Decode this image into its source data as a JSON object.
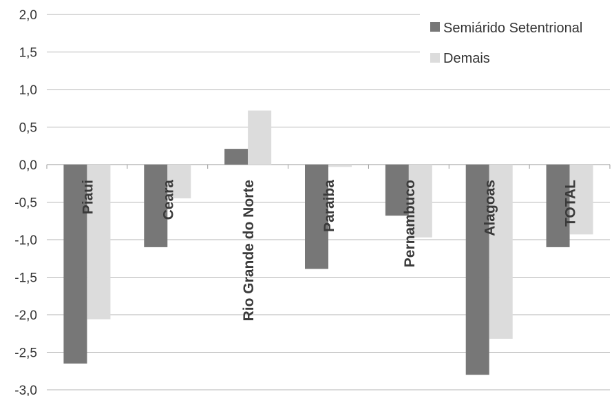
{
  "chart_data": {
    "type": "bar",
    "title": "",
    "xlabel": "",
    "ylabel": "",
    "ylim": [
      -3.0,
      2.0
    ],
    "ytick_step": 0.5,
    "ytick_labels": [
      "2,0",
      "1,5",
      "1,0",
      "0,5",
      "0,0",
      "-0,5",
      "-1,0",
      "-1,5",
      "-2,0",
      "-2,5",
      "-3,0"
    ],
    "grid": true,
    "legend_position": "top-right",
    "categories": [
      "Piaui",
      "Ceara",
      "Rio Grande do Norte",
      "Paraiba",
      "Pernambuco",
      "Alagoas",
      "TOTAL"
    ],
    "series": [
      {
        "name": "Semiárido Setentrional",
        "color": "#777777",
        "values": [
          -2.65,
          -1.1,
          0.21,
          -1.39,
          -0.68,
          -2.8,
          -1.1
        ]
      },
      {
        "name": "Demais",
        "color": "#dcdcdc",
        "values": [
          -2.06,
          -0.45,
          0.72,
          -0.03,
          -0.97,
          -2.32,
          -0.93
        ]
      }
    ]
  }
}
